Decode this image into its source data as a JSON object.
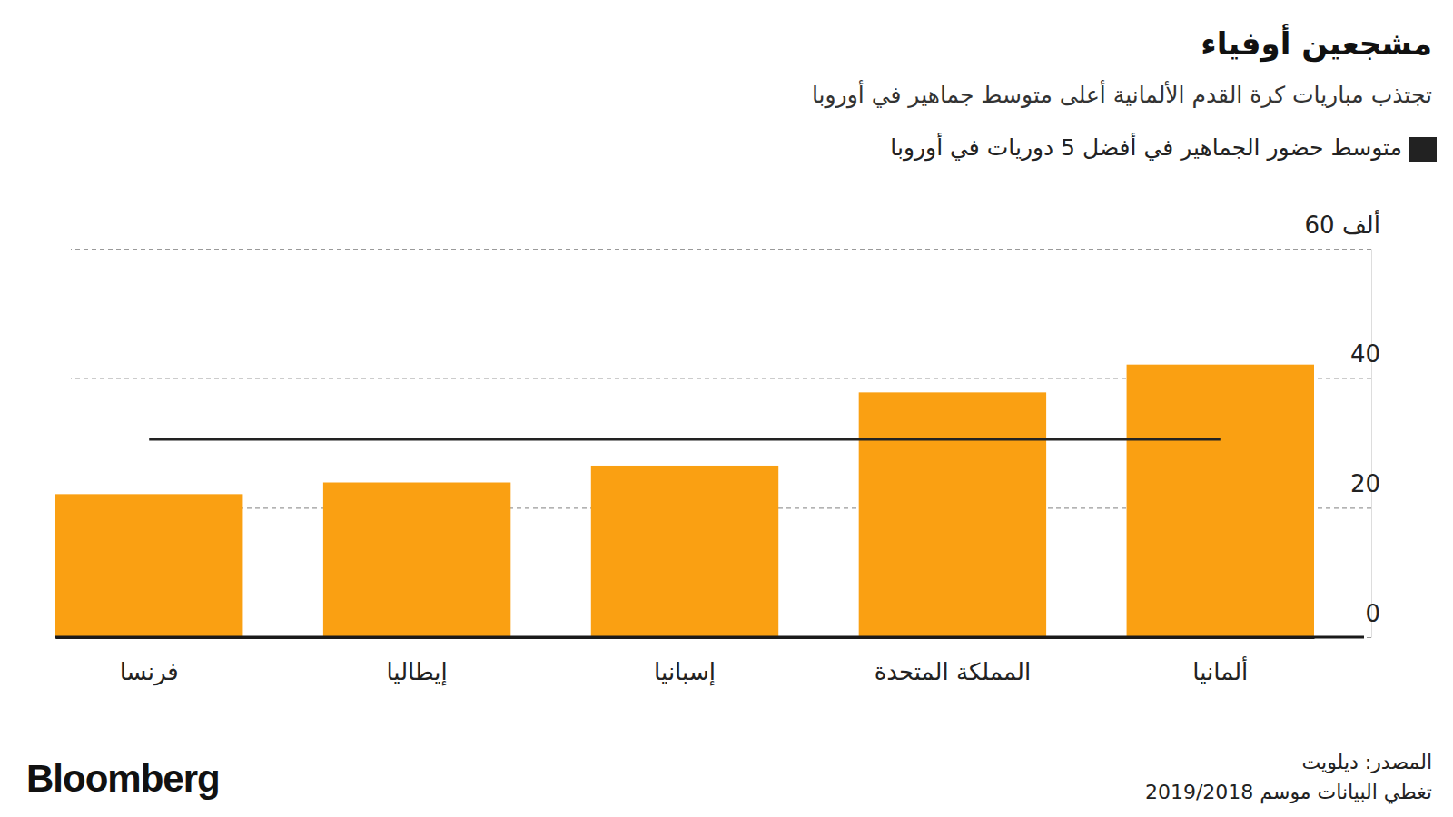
{
  "chart_data": {
    "type": "bar",
    "title": "مشجعين أوفياء",
    "subtitle": "تجتذب مباريات كرة القدم الألمانية أعلى متوسط جماهير في أوروبا",
    "categories": [
      "فرنسا",
      "إيطاليا",
      "إسبانيا",
      "المملكة المتحدة",
      "ألمانيا"
    ],
    "series": [
      {
        "type": "bar",
        "color": "#faa012",
        "values": [
          22.1,
          23.9,
          26.5,
          37.8,
          42.1
        ]
      },
      {
        "name": "متوسط حضور الجماهير في أفضل 5 دوريات في أوروبا",
        "type": "line",
        "color": "#222222",
        "values": [
          30.6,
          30.6,
          30.6,
          30.6,
          30.6
        ]
      }
    ],
    "ylim": [
      0,
      60
    ],
    "yticks": [
      0,
      20,
      40,
      {
        "value": 60,
        "label": "60 ألف"
      }
    ],
    "grid": true,
    "legend": "top-right",
    "source": "المصدر: ديلويت",
    "note": "تغطي البيانات موسم 2019/2018",
    "logo": "Bloomberg"
  }
}
